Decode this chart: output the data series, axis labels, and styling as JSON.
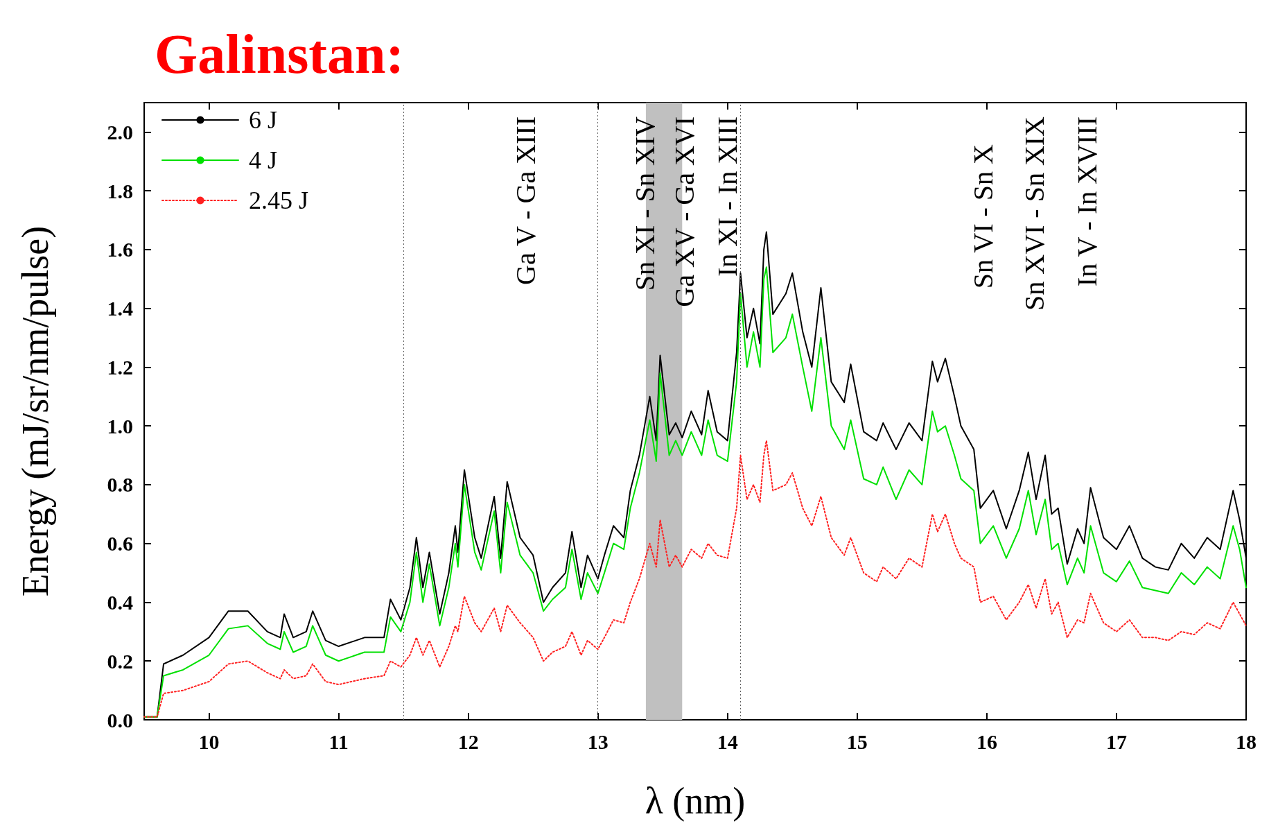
{
  "chart_data": {
    "type": "line",
    "title": "Galinstan:",
    "xlabel": "λ (nm)",
    "ylabel": "Energy (mJ/sr/nm/pulse)",
    "xlim": [
      9.5,
      18
    ],
    "xticks": [
      10,
      11,
      12,
      13,
      14,
      15,
      16,
      17,
      18
    ],
    "ylim": [
      0,
      2.1
    ],
    "yticks": [
      {
        "value": 0,
        "label": "0.0"
      },
      {
        "value": 0.2,
        "label": "0.2"
      },
      {
        "value": 0.4,
        "label": "0.4"
      },
      {
        "value": 0.6,
        "label": "0.6"
      },
      {
        "value": 0.8,
        "label": "0.8"
      },
      {
        "value": 1,
        "label": "1.0"
      },
      {
        "value": 1.2,
        "label": "1.2"
      },
      {
        "value": 1.4,
        "label": "1.4"
      },
      {
        "value": 1.6,
        "label": "1.6"
      },
      {
        "value": 1.8,
        "label": "1.8"
      },
      {
        "value": 2,
        "label": "2.0"
      }
    ],
    "grid": false,
    "legend": "top left",
    "marker": "none",
    "x": [
      9.5,
      9.6,
      9.65,
      9.8,
      10.0,
      10.15,
      10.3,
      10.45,
      10.55,
      10.58,
      10.65,
      10.75,
      10.8,
      10.9,
      11.0,
      11.2,
      11.35,
      11.4,
      11.48,
      11.55,
      11.6,
      11.65,
      11.7,
      11.78,
      11.85,
      11.9,
      11.92,
      11.97,
      12.05,
      12.1,
      12.2,
      12.25,
      12.3,
      12.4,
      12.5,
      12.58,
      12.65,
      12.75,
      12.8,
      12.87,
      12.92,
      13.0,
      13.05,
      13.12,
      13.2,
      13.25,
      13.32,
      13.4,
      13.45,
      13.48,
      13.55,
      13.6,
      13.65,
      13.72,
      13.8,
      13.85,
      13.92,
      14.0,
      14.07,
      14.1,
      14.15,
      14.2,
      14.25,
      14.28,
      14.3,
      14.35,
      14.45,
      14.5,
      14.58,
      14.65,
      14.72,
      14.8,
      14.9,
      14.95,
      15.05,
      15.15,
      15.2,
      15.3,
      15.4,
      15.5,
      15.58,
      15.62,
      15.68,
      15.75,
      15.8,
      15.9,
      15.95,
      16.05,
      16.15,
      16.25,
      16.32,
      16.38,
      16.45,
      16.5,
      16.55,
      16.62,
      16.7,
      16.75,
      16.8,
      16.9,
      17.0,
      17.1,
      17.2,
      17.3,
      17.4,
      17.5,
      17.6,
      17.7,
      17.8,
      17.9,
      17.95,
      18.0
    ],
    "series": [
      {
        "name": "6 J",
        "color": "#000000",
        "line_style": "solid",
        "values": [
          0.01,
          0.01,
          0.19,
          0.22,
          0.28,
          0.37,
          0.37,
          0.3,
          0.28,
          0.36,
          0.28,
          0.3,
          0.37,
          0.27,
          0.25,
          0.28,
          0.28,
          0.41,
          0.34,
          0.45,
          0.62,
          0.45,
          0.57,
          0.36,
          0.5,
          0.66,
          0.57,
          0.85,
          0.62,
          0.55,
          0.76,
          0.55,
          0.81,
          0.62,
          0.56,
          0.4,
          0.45,
          0.5,
          0.64,
          0.45,
          0.56,
          0.48,
          0.56,
          0.66,
          0.62,
          0.78,
          0.9,
          1.1,
          0.95,
          1.24,
          0.97,
          1.01,
          0.96,
          1.05,
          0.97,
          1.12,
          0.98,
          0.95,
          1.25,
          1.52,
          1.3,
          1.4,
          1.28,
          1.6,
          1.66,
          1.38,
          1.45,
          1.52,
          1.32,
          1.2,
          1.47,
          1.15,
          1.08,
          1.21,
          0.98,
          0.95,
          1.01,
          0.92,
          1.01,
          0.95,
          1.22,
          1.15,
          1.23,
          1.1,
          1.0,
          0.92,
          0.72,
          0.78,
          0.65,
          0.78,
          0.91,
          0.75,
          0.9,
          0.7,
          0.72,
          0.53,
          0.65,
          0.6,
          0.79,
          0.62,
          0.58,
          0.66,
          0.55,
          0.52,
          0.51,
          0.6,
          0.55,
          0.62,
          0.58,
          0.78,
          0.68,
          0.55
        ]
      },
      {
        "name": "4 J",
        "color": "#00e000",
        "line_style": "solid",
        "values": [
          0.01,
          0.01,
          0.15,
          0.17,
          0.22,
          0.31,
          0.32,
          0.26,
          0.24,
          0.3,
          0.23,
          0.25,
          0.32,
          0.22,
          0.2,
          0.23,
          0.23,
          0.35,
          0.3,
          0.4,
          0.57,
          0.4,
          0.53,
          0.32,
          0.45,
          0.6,
          0.52,
          0.8,
          0.57,
          0.51,
          0.71,
          0.5,
          0.74,
          0.56,
          0.5,
          0.37,
          0.41,
          0.45,
          0.58,
          0.41,
          0.5,
          0.43,
          0.5,
          0.6,
          0.58,
          0.72,
          0.84,
          1.02,
          0.88,
          1.18,
          0.9,
          0.95,
          0.9,
          0.98,
          0.9,
          1.02,
          0.9,
          0.88,
          1.15,
          1.45,
          1.2,
          1.32,
          1.2,
          1.5,
          1.54,
          1.25,
          1.3,
          1.38,
          1.2,
          1.05,
          1.3,
          1.0,
          0.92,
          1.02,
          0.82,
          0.8,
          0.86,
          0.75,
          0.85,
          0.8,
          1.05,
          0.98,
          1.0,
          0.9,
          0.82,
          0.78,
          0.6,
          0.66,
          0.55,
          0.65,
          0.78,
          0.63,
          0.75,
          0.58,
          0.6,
          0.46,
          0.55,
          0.5,
          0.66,
          0.5,
          0.47,
          0.54,
          0.45,
          0.44,
          0.43,
          0.5,
          0.46,
          0.52,
          0.48,
          0.66,
          0.58,
          0.45
        ]
      },
      {
        "name": "2.45 J",
        "color": "#ff2020",
        "line_style": "dotted",
        "values": [
          0.01,
          0.01,
          0.09,
          0.1,
          0.13,
          0.19,
          0.2,
          0.16,
          0.14,
          0.17,
          0.14,
          0.15,
          0.19,
          0.13,
          0.12,
          0.14,
          0.15,
          0.2,
          0.18,
          0.22,
          0.28,
          0.22,
          0.27,
          0.18,
          0.25,
          0.32,
          0.3,
          0.42,
          0.33,
          0.3,
          0.38,
          0.3,
          0.39,
          0.33,
          0.28,
          0.2,
          0.23,
          0.25,
          0.3,
          0.22,
          0.27,
          0.24,
          0.28,
          0.34,
          0.33,
          0.4,
          0.48,
          0.6,
          0.52,
          0.68,
          0.52,
          0.56,
          0.52,
          0.58,
          0.55,
          0.6,
          0.56,
          0.55,
          0.72,
          0.9,
          0.75,
          0.8,
          0.74,
          0.9,
          0.95,
          0.78,
          0.8,
          0.84,
          0.72,
          0.66,
          0.76,
          0.62,
          0.56,
          0.62,
          0.5,
          0.47,
          0.52,
          0.48,
          0.55,
          0.52,
          0.7,
          0.64,
          0.7,
          0.6,
          0.55,
          0.52,
          0.4,
          0.42,
          0.34,
          0.4,
          0.46,
          0.38,
          0.48,
          0.36,
          0.4,
          0.28,
          0.34,
          0.33,
          0.43,
          0.33,
          0.3,
          0.34,
          0.28,
          0.28,
          0.27,
          0.3,
          0.29,
          0.33,
          0.31,
          0.4,
          0.36,
          0.32
        ]
      }
    ],
    "ref_lines": [
      {
        "axis": "x",
        "value": 11.5,
        "color": "#606060",
        "line_style": "dotted"
      },
      {
        "axis": "x",
        "value": 13.0,
        "color": "#606060",
        "line_style": "dotted"
      },
      {
        "axis": "x",
        "value": 14.1,
        "color": "#606060",
        "line_style": "dotted"
      }
    ],
    "bands": [
      {
        "axis": "x",
        "from": 13.37,
        "to": 13.65,
        "color": "#c0c0c0"
      }
    ],
    "annotations": [
      "Ga V - Ga XIII",
      "Sn XI - Sn XIV",
      "Ga XV - Ga XVI",
      "In XI - In XIII",
      "Sn VI - Sn X",
      "Sn XVI - Sn XIX",
      "In V - In XVIII"
    ]
  }
}
